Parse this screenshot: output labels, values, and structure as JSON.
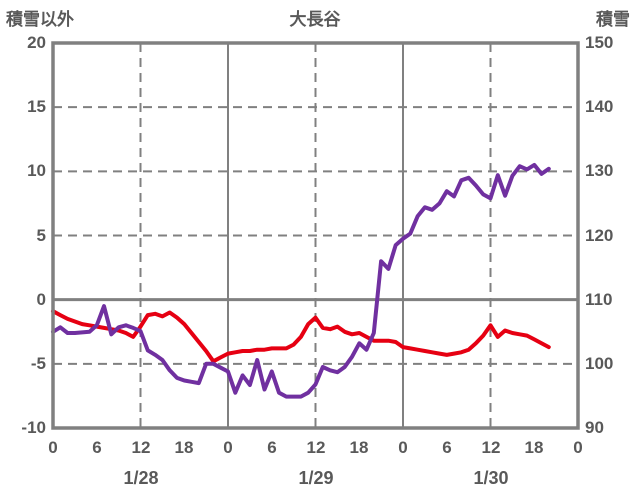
{
  "chart_data": {
    "type": "line",
    "title": "大長谷",
    "left_axis": {
      "title": "積雪以外",
      "min": -10,
      "max": 20,
      "ticks": [
        20,
        15,
        10,
        5,
        0,
        -5,
        -10
      ]
    },
    "right_axis": {
      "title": "積雪",
      "min": 90,
      "max": 150,
      "ticks": [
        150,
        140,
        130,
        120,
        110,
        100,
        90
      ]
    },
    "x_axis": {
      "hours_total": 72,
      "tick_step": 6,
      "tick_labels": [
        "0",
        "6",
        "12",
        "18",
        "0",
        "6",
        "12",
        "18",
        "0",
        "6",
        "12",
        "18",
        "0"
      ],
      "date_labels": [
        {
          "label": "1/28",
          "hour": 12
        },
        {
          "label": "1/29",
          "hour": 36
        },
        {
          "label": "1/30",
          "hour": 60
        }
      ],
      "dashed_hours": [
        12,
        36,
        60
      ],
      "solid_hours": [
        24,
        48
      ]
    },
    "colors": {
      "text": "#595959",
      "grid": "#808080",
      "border": "#808080",
      "red_series": "#e60012",
      "purple_series": "#7030a0"
    },
    "legend": "none",
    "series": [
      {
        "name": "red-series",
        "axis": "left",
        "color_key": "red_series",
        "x_start": 0,
        "x_step": 1,
        "values": [
          -0.9,
          -1.2,
          -1.5,
          -1.7,
          -1.9,
          -2.0,
          -2.1,
          -2.2,
          -2.3,
          -2.4,
          -2.6,
          -2.9,
          -2.1,
          -1.2,
          -1.1,
          -1.3,
          -1.0,
          -1.4,
          -1.9,
          -2.6,
          -3.3,
          -4.0,
          -4.8,
          -4.5,
          -4.2,
          -4.1,
          -4.0,
          -4.0,
          -3.9,
          -3.9,
          -3.8,
          -3.8,
          -3.8,
          -3.5,
          -2.9,
          -1.9,
          -1.4,
          -2.2,
          -2.3,
          -2.1,
          -2.5,
          -2.7,
          -2.6,
          -2.9,
          -3.2,
          -3.2,
          -3.2,
          -3.3,
          -3.7,
          -3.8,
          -3.9,
          -4.0,
          -4.1,
          -4.2,
          -4.3,
          -4.2,
          -4.1,
          -3.9,
          -3.4,
          -2.8,
          -2.0,
          -2.9,
          -2.4,
          -2.6,
          -2.7,
          -2.8,
          -3.1,
          -3.4,
          -3.7
        ]
      },
      {
        "name": "purple-series",
        "axis": "right",
        "color_key": "purple_series",
        "x_start": 0,
        "x_step": 1,
        "values": [
          105.0,
          105.7,
          104.8,
          104.8,
          104.9,
          105.0,
          106.0,
          109.0,
          104.6,
          105.7,
          106.0,
          105.6,
          105.1,
          102.1,
          101.4,
          100.6,
          99.0,
          97.8,
          97.4,
          97.2,
          97.0,
          100.0,
          100.0,
          99.4,
          98.8,
          95.5,
          98.2,
          96.7,
          100.6,
          96.0,
          98.8,
          95.5,
          94.9,
          94.9,
          94.9,
          95.5,
          96.8,
          99.5,
          99.0,
          98.7,
          99.5,
          101.1,
          103.2,
          102.2,
          104.8,
          116.0,
          114.8,
          118.5,
          119.5,
          120.3,
          123.0,
          124.4,
          124.0,
          125.0,
          126.9,
          126.1,
          128.6,
          129.0,
          127.8,
          126.4,
          125.8,
          129.4,
          126.2,
          129.3,
          130.8,
          130.3,
          131.0,
          129.6,
          130.4
        ]
      }
    ]
  }
}
